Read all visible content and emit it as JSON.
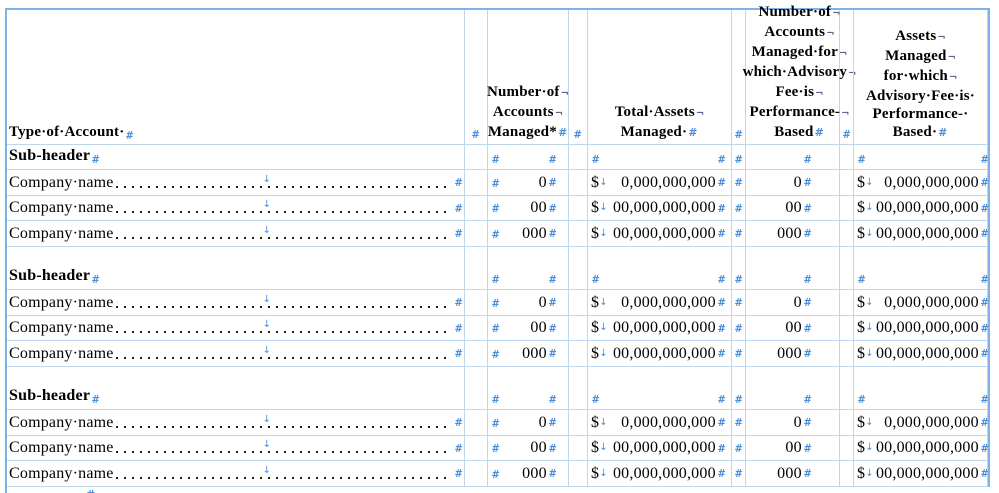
{
  "marks": {
    "cell_end": "#",
    "line_break": "¬",
    "tab": "↓"
  },
  "colors": {
    "grid_outer": "#7FB2E8",
    "grid_inner": "#BDD7EE",
    "mark_blue": "#4A8FD6",
    "text": "#000000"
  },
  "table": {
    "currency": "$",
    "header": {
      "col1": "Type·of·Account·",
      "col2_lines": [
        "Number·of",
        "Accounts",
        "Managed*"
      ],
      "col3_lines": [
        "Total·Assets",
        "Managed·"
      ],
      "col4_lines": [
        "Number·of",
        "Accounts",
        "Managed·for",
        "which·Advisory",
        "Fee·is",
        "Performance-",
        "Based"
      ],
      "col5_lines": [
        "Assets",
        "Managed",
        "for·which",
        "Advisory·Fee·is·",
        "Performance-·",
        "Based·"
      ]
    },
    "sections": [
      {
        "subheader": "Sub-header",
        "rows": [
          {
            "name": "Company·name",
            "acct": "0",
            "amount": "0,000,000,000",
            "pacct": "0",
            "pamount": "0,000,000,000"
          },
          {
            "name": "Company·name",
            "acct": "00",
            "amount": "00,000,000,000",
            "pacct": "00",
            "pamount": "00,000,000,000"
          },
          {
            "name": "Company·name",
            "acct": "000",
            "amount": "00,000,000,000",
            "pacct": "000",
            "pamount": "00,000,000,000"
          }
        ]
      },
      {
        "subheader": "Sub-header",
        "rows": [
          {
            "name": "Company·name",
            "acct": "0",
            "amount": "0,000,000,000",
            "pacct": "0",
            "pamount": "0,000,000,000"
          },
          {
            "name": "Company·name",
            "acct": "00",
            "amount": "00,000,000,000",
            "pacct": "00",
            "pamount": "00,000,000,000"
          },
          {
            "name": "Company·name",
            "acct": "000",
            "amount": "00,000,000,000",
            "pacct": "000",
            "pamount": "00,000,000,000"
          }
        ]
      },
      {
        "subheader": "Sub-header",
        "rows": [
          {
            "name": "Company·name",
            "acct": "0",
            "amount": "0,000,000,000",
            "pacct": "0",
            "pamount": "0,000,000,000"
          },
          {
            "name": "Company·name",
            "acct": "00",
            "amount": "00,000,000,000",
            "pacct": "00",
            "pamount": "00,000,000,000"
          },
          {
            "name": "Company·name",
            "acct": "000",
            "amount": "00,000,000,000",
            "pacct": "000",
            "pamount": "00,000,000,000"
          }
        ]
      }
    ]
  }
}
